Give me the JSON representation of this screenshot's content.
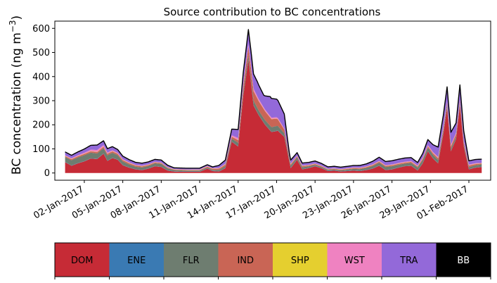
{
  "chart_data": {
    "type": "area",
    "title": "Source contribution to BC concentrations",
    "ylabel_main": "BC concentration (ng m",
    "ylabel_exp": "−3",
    "ylabel_close": ")",
    "xlabel": "",
    "ylim": [
      -30,
      630
    ],
    "yticks": [
      0,
      100,
      200,
      300,
      400,
      500,
      600
    ],
    "xlim_day": [
      -1.3,
      32.7
    ],
    "xtick_days": [
      1,
      4,
      7,
      10,
      13,
      16,
      19,
      22,
      25,
      28,
      31
    ],
    "xtick_labels": [
      "02-Jan-2017",
      "05-Jan-2017",
      "08-Jan-2017",
      "11-Jan-2017",
      "14-Jan-2017",
      "17-Jan-2017",
      "20-Jan-2017",
      "23-Jan-2017",
      "26-Jan-2017",
      "29-Jan-2017",
      "01-Feb-2017"
    ],
    "x_unit": "days since 01-Jan-2017 00:00",
    "total_line_color": "#000000",
    "series": [
      {
        "name": "DOM",
        "color": "#c62b36",
        "text_color": "#000000",
        "points": [
          [
            -0.5,
            45
          ],
          [
            0,
            30
          ],
          [
            0.5,
            40
          ],
          [
            1,
            48
          ],
          [
            1.5,
            60
          ],
          [
            2,
            58
          ],
          [
            2.5,
            80
          ],
          [
            2.8,
            50
          ],
          [
            3.2,
            62
          ],
          [
            3.6,
            55
          ],
          [
            4,
            32
          ],
          [
            4.5,
            22
          ],
          [
            5,
            15
          ],
          [
            5.5,
            12
          ],
          [
            6,
            18
          ],
          [
            6.5,
            28
          ],
          [
            7,
            25
          ],
          [
            7.5,
            10
          ],
          [
            8,
            6
          ],
          [
            9,
            5
          ],
          [
            10,
            5
          ],
          [
            10.6,
            18
          ],
          [
            11,
            8
          ],
          [
            11.5,
            6
          ],
          [
            12,
            20
          ],
          [
            12.5,
            130
          ],
          [
            13,
            110
          ],
          [
            13.4,
            320
          ],
          [
            13.8,
            470
          ],
          [
            14.2,
            280
          ],
          [
            14.6,
            240
          ],
          [
            15.1,
            200
          ],
          [
            15.6,
            170
          ],
          [
            16.1,
            175
          ],
          [
            16.6,
            150
          ],
          [
            17.1,
            20
          ],
          [
            17.6,
            55
          ],
          [
            18,
            15
          ],
          [
            18.5,
            20
          ],
          [
            19,
            28
          ],
          [
            19.5,
            20
          ],
          [
            20,
            8
          ],
          [
            20.5,
            10
          ],
          [
            21,
            6
          ],
          [
            21.5,
            8
          ],
          [
            22,
            10
          ],
          [
            22.5,
            8
          ],
          [
            23,
            12
          ],
          [
            23.5,
            18
          ],
          [
            24,
            30
          ],
          [
            24.5,
            12
          ],
          [
            25,
            15
          ],
          [
            25.5,
            22
          ],
          [
            26,
            28
          ],
          [
            26.5,
            30
          ],
          [
            27,
            10
          ],
          [
            27.4,
            40
          ],
          [
            27.8,
            90
          ],
          [
            28.2,
            60
          ],
          [
            28.6,
            40
          ],
          [
            29,
            160
          ],
          [
            29.3,
            270
          ],
          [
            29.6,
            90
          ],
          [
            30,
            140
          ],
          [
            30.3,
            280
          ],
          [
            30.6,
            110
          ],
          [
            31,
            15
          ],
          [
            31.5,
            22
          ],
          [
            32,
            25
          ]
        ]
      },
      {
        "name": "ENE",
        "color": "#3a7ab3",
        "text_color": "#000000",
        "points": [
          [
            -0.5,
            1
          ],
          [
            32,
            1
          ]
        ]
      },
      {
        "name": "FLR",
        "color": "#6e7d70",
        "text_color": "#000000",
        "points": [
          [
            -0.5,
            20
          ],
          [
            0,
            22
          ],
          [
            1,
            25
          ],
          [
            2,
            22
          ],
          [
            3,
            22
          ],
          [
            4,
            15
          ],
          [
            5,
            10
          ],
          [
            6,
            10
          ],
          [
            7,
            12
          ],
          [
            8,
            5
          ],
          [
            9,
            4
          ],
          [
            10,
            4
          ],
          [
            11,
            4
          ],
          [
            12,
            8
          ],
          [
            13,
            15
          ],
          [
            14,
            20
          ],
          [
            15,
            18
          ],
          [
            16,
            20
          ],
          [
            17,
            10
          ],
          [
            18,
            8
          ],
          [
            19,
            5
          ],
          [
            20,
            4
          ],
          [
            21,
            4
          ],
          [
            22,
            6
          ],
          [
            23,
            8
          ],
          [
            24,
            12
          ],
          [
            25,
            12
          ],
          [
            26,
            10
          ],
          [
            27,
            12
          ],
          [
            28,
            15
          ],
          [
            29,
            12
          ],
          [
            30,
            10
          ],
          [
            31,
            8
          ],
          [
            32,
            10
          ]
        ]
      },
      {
        "name": "IND",
        "color": "#c96555",
        "text_color": "#000000",
        "points": [
          [
            -0.5,
            4
          ],
          [
            1,
            5
          ],
          [
            3,
            6
          ],
          [
            6,
            4
          ],
          [
            8,
            2
          ],
          [
            10,
            2
          ],
          [
            12,
            6
          ],
          [
            13,
            10
          ],
          [
            14,
            40
          ],
          [
            15,
            38
          ],
          [
            16,
            30
          ],
          [
            17,
            5
          ],
          [
            20,
            2
          ],
          [
            24,
            4
          ],
          [
            27,
            4
          ],
          [
            29,
            8
          ],
          [
            30,
            10
          ],
          [
            32,
            3
          ]
        ]
      },
      {
        "name": "SHP",
        "color": "#e5cf2f",
        "text_color": "#000000",
        "points": [
          [
            -0.5,
            1
          ],
          [
            32,
            1
          ]
        ]
      },
      {
        "name": "WST",
        "color": "#ef82c1",
        "text_color": "#000000",
        "points": [
          [
            -0.5,
            2
          ],
          [
            1,
            4
          ],
          [
            2,
            8
          ],
          [
            3,
            4
          ],
          [
            5,
            2
          ],
          [
            8,
            1
          ],
          [
            12,
            2
          ],
          [
            13,
            8
          ],
          [
            14,
            10
          ],
          [
            15,
            6
          ],
          [
            16,
            5
          ],
          [
            17,
            2
          ],
          [
            20,
            1
          ],
          [
            24,
            2
          ],
          [
            27,
            3
          ],
          [
            29,
            5
          ],
          [
            30,
            5
          ],
          [
            32,
            2
          ]
        ]
      },
      {
        "name": "TRA",
        "color": "#9369d9",
        "text_color": "#000000",
        "points": [
          [
            -0.5,
            14
          ],
          [
            0,
            12
          ],
          [
            1,
            15
          ],
          [
            2,
            20
          ],
          [
            3,
            15
          ],
          [
            4,
            12
          ],
          [
            5,
            10
          ],
          [
            6,
            10
          ],
          [
            7,
            10
          ],
          [
            8,
            5
          ],
          [
            9,
            5
          ],
          [
            10,
            5
          ],
          [
            11,
            5
          ],
          [
            12,
            15
          ],
          [
            13,
            35
          ],
          [
            13.8,
            60
          ],
          [
            14.5,
            60
          ],
          [
            15,
            50
          ],
          [
            15.5,
            80
          ],
          [
            16,
            75
          ],
          [
            16.6,
            60
          ],
          [
            17,
            15
          ],
          [
            18,
            10
          ],
          [
            19,
            10
          ],
          [
            20,
            8
          ],
          [
            21,
            8
          ],
          [
            22,
            8
          ],
          [
            23,
            10
          ],
          [
            24,
            15
          ],
          [
            25,
            15
          ],
          [
            26,
            15
          ],
          [
            27,
            12
          ],
          [
            28,
            25
          ],
          [
            29,
            50
          ],
          [
            29.3,
            60
          ],
          [
            30,
            40
          ],
          [
            30.3,
            60
          ],
          [
            31,
            15
          ],
          [
            32,
            15
          ]
        ]
      },
      {
        "name": "BB",
        "color": "#000000",
        "text_color": "#ffffff",
        "points": [
          [
            -0.5,
            0.5
          ],
          [
            32,
            0.5
          ]
        ]
      }
    ]
  }
}
